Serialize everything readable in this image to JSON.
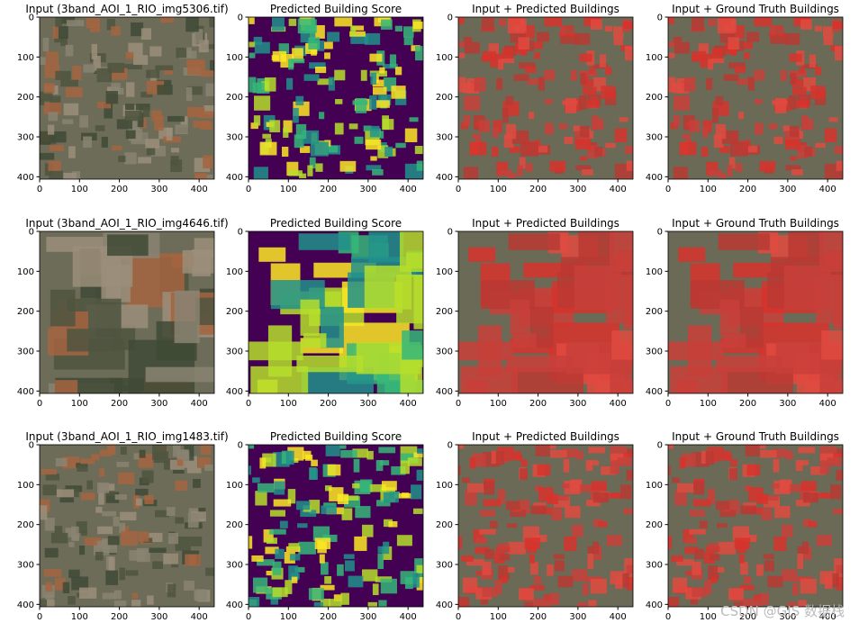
{
  "figure": {
    "panels": [
      {
        "title": "Input (3band_AOI_1_RIO_img5306.tif)",
        "kind": "input"
      },
      {
        "title": "Predicted Building Score",
        "kind": "score"
      },
      {
        "title": "Input + Predicted Buildings",
        "kind": "overlay"
      },
      {
        "title": "Input + Ground Truth Buildings",
        "kind": "overlay"
      },
      {
        "title": "Input (3band_AOI_1_RIO_img4646.tif)",
        "kind": "input"
      },
      {
        "title": "Predicted Building Score",
        "kind": "score"
      },
      {
        "title": "Input + Predicted Buildings",
        "kind": "overlay"
      },
      {
        "title": "Input + Ground Truth Buildings",
        "kind": "overlay"
      },
      {
        "title": "Input (3band_AOI_1_RIO_img1483.tif)",
        "kind": "input"
      },
      {
        "title": "Predicted Building Score",
        "kind": "score"
      },
      {
        "title": "Input + Predicted Buildings",
        "kind": "overlay"
      },
      {
        "title": "Input + Ground Truth Buildings",
        "kind": "overlay"
      }
    ],
    "axes": {
      "xlim": [
        0,
        438
      ],
      "ylim": [
        0,
        406
      ],
      "y_inverted": true,
      "xticks": [
        0,
        100,
        200,
        300,
        400
      ],
      "yticks": [
        0,
        100,
        200,
        300,
        400
      ]
    },
    "watermark": "CSDN @GIS 数据栈"
  }
}
